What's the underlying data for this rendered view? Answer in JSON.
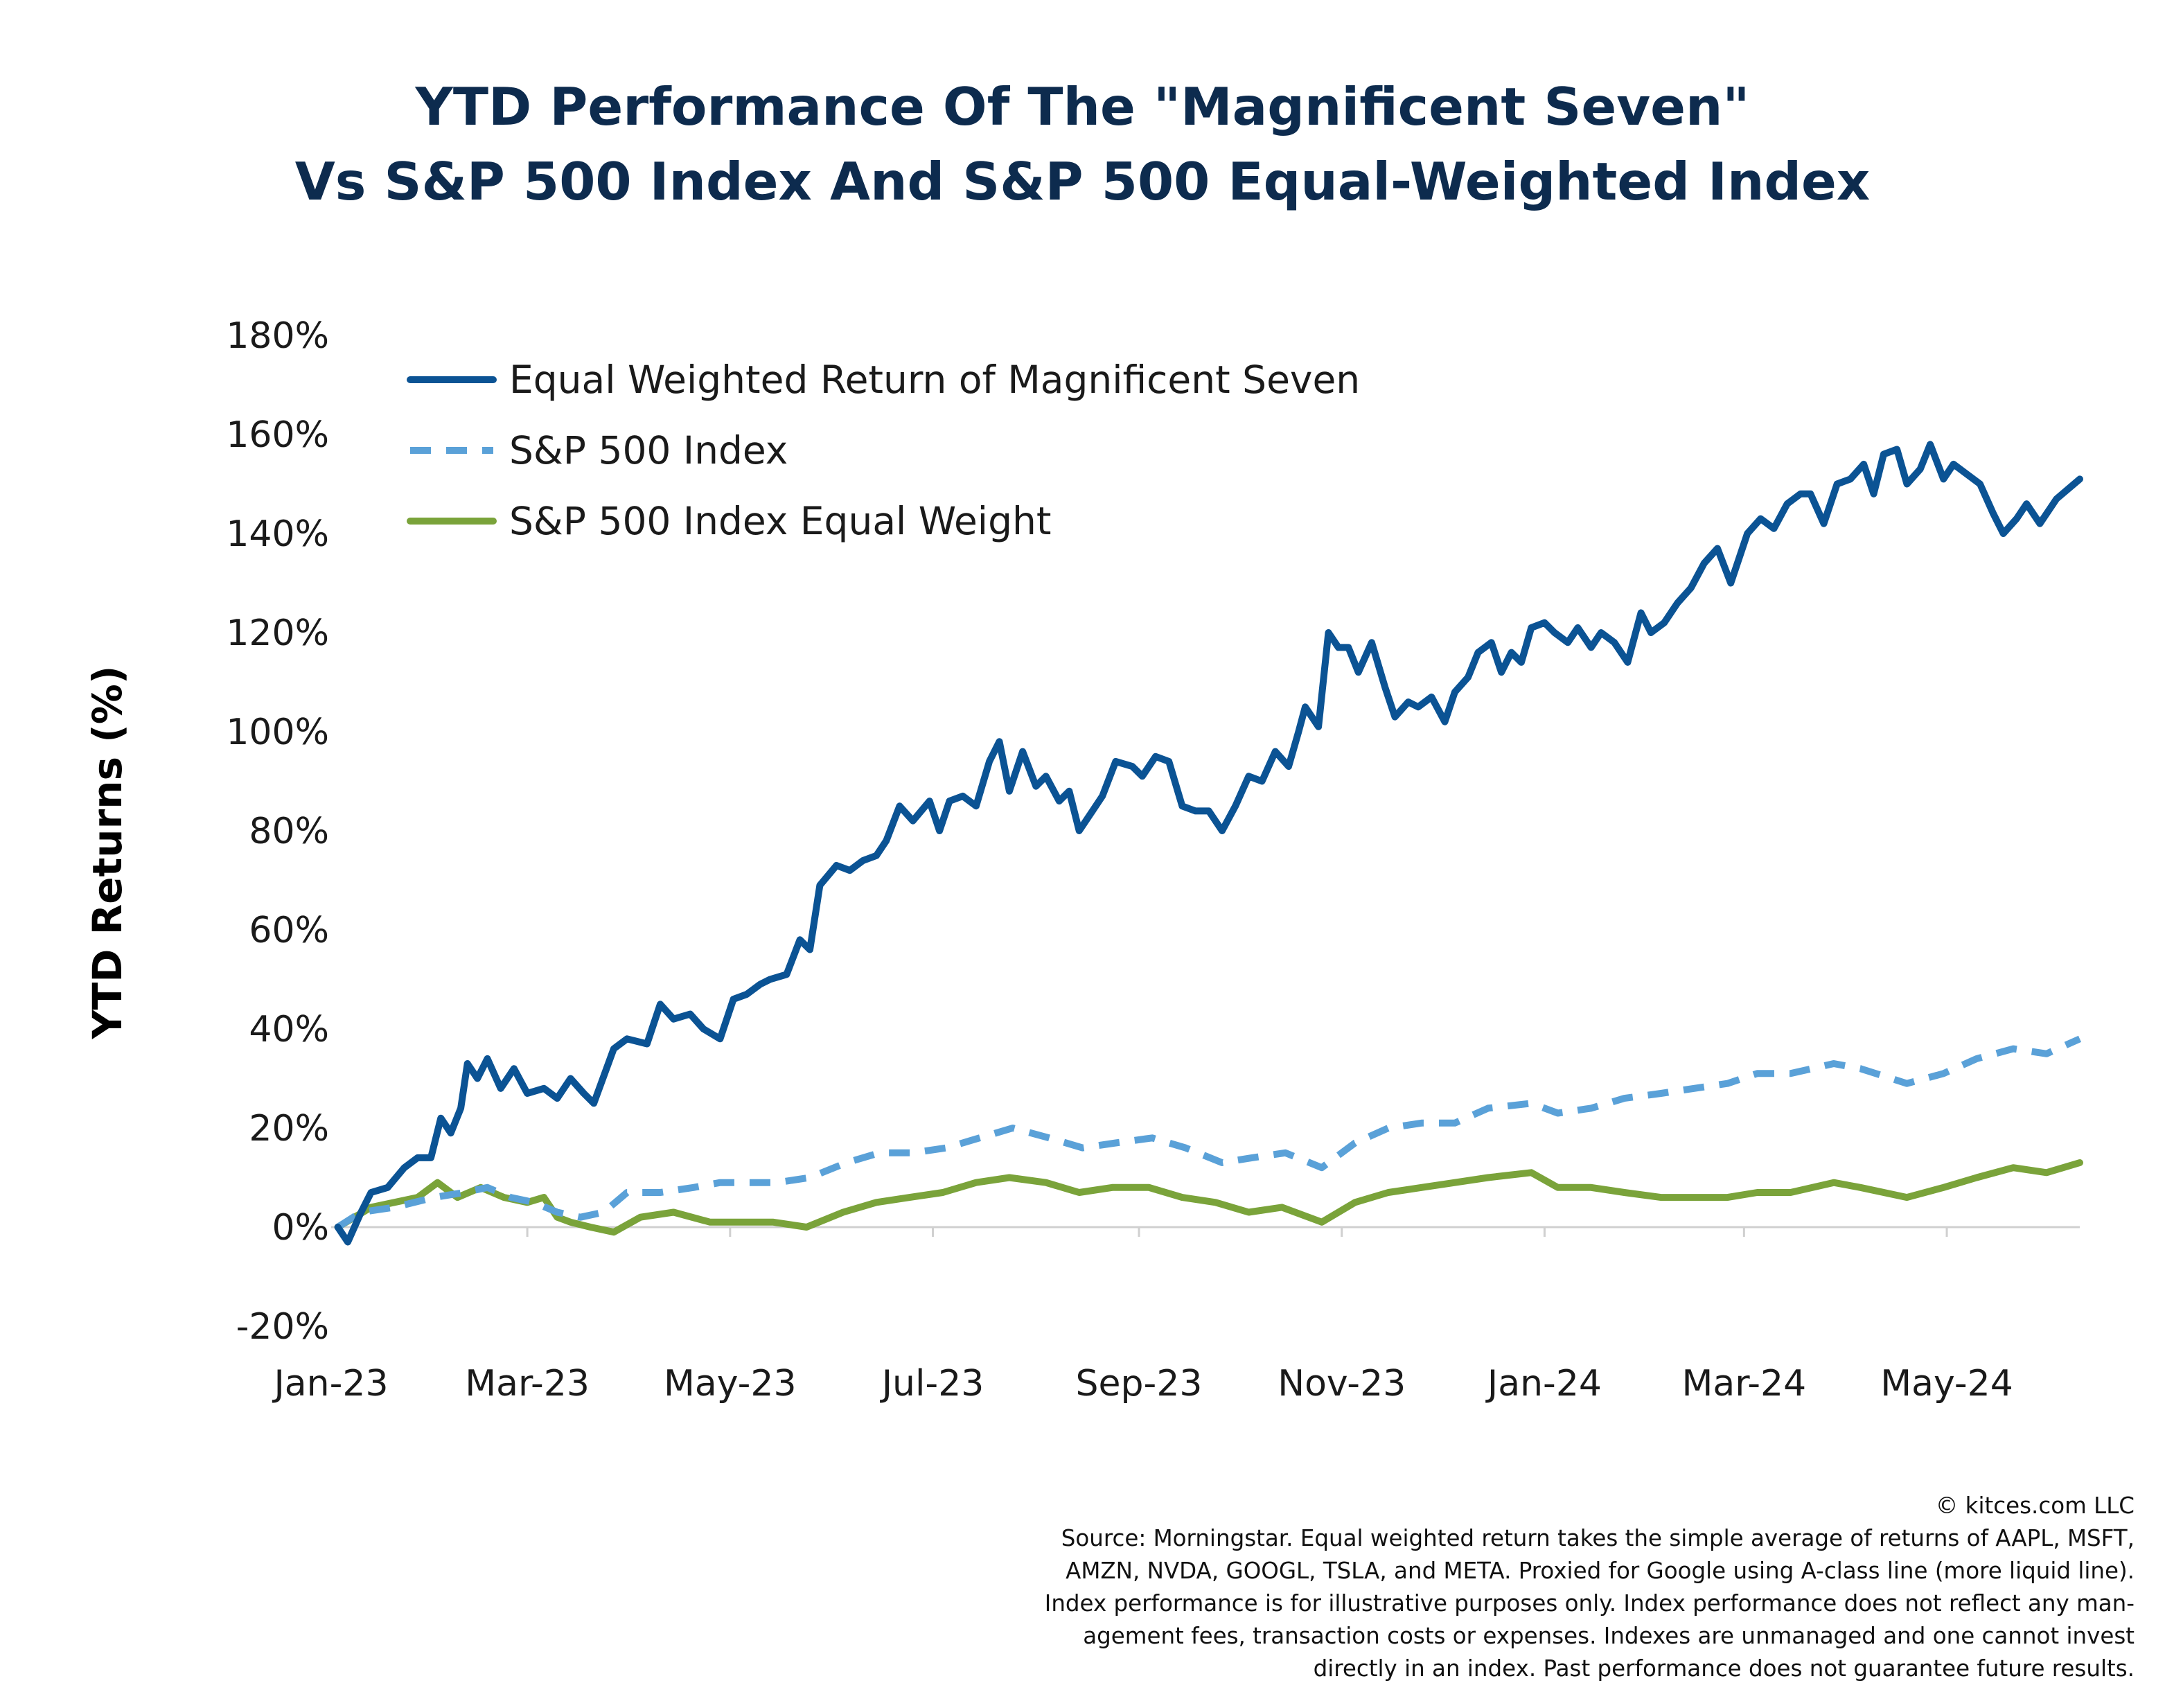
{
  "title_lines": [
    "YTD Performance Of The \"Magnificent Seven\"",
    "Vs S&P 500 Index And S&P 500 Equal-Weighted Index"
  ],
  "footer": {
    "copyright": "© kitces.com LLC",
    "source_lines": [
      "Source: Morningstar. Equal weighted return takes the simple average of returns of AAPL, MSFT,",
      "AMZN, NVDA, GOOGL, TSLA, and META. Proxied for Google using A-class line (more liquid line).",
      "Index performance is for illustrative purposes only.  Index performance does not reflect any man-",
      "agement fees, transaction costs or expenses. Indexes are unmanaged and one cannot invest",
      "directly in an index. Past performance does not guarantee future results."
    ]
  },
  "chart_data": {
    "type": "line",
    "title": "YTD Performance Of The \"Magnificent Seven\" Vs S&P 500 Index And S&P 500 Equal-Weighted Index",
    "xlabel": "",
    "ylabel": "YTD Returns (%)",
    "ylim": [
      -20,
      180
    ],
    "y_ticks": [
      -20,
      0,
      20,
      40,
      60,
      80,
      100,
      120,
      140,
      160,
      180
    ],
    "y_tick_labels": [
      "-20%",
      "0%",
      "20%",
      "40%",
      "60%",
      "80%",
      "100%",
      "120%",
      "140%",
      "160%",
      "180%"
    ],
    "x_range": [
      "2023-01-01",
      "2024-06-10"
    ],
    "x_ticks": [
      "2023-01-01",
      "2023-03-01",
      "2023-05-01",
      "2023-07-01",
      "2023-09-01",
      "2023-11-01",
      "2024-01-01",
      "2024-03-01",
      "2024-05-01"
    ],
    "x_tick_labels": [
      "Jan-23",
      "Mar-23",
      "May-23",
      "Jul-23",
      "Sep-23",
      "Nov-23",
      "Jan-24",
      "Mar-24",
      "May-24"
    ],
    "grid": false,
    "legend_position": "top-left",
    "series": [
      {
        "name": "Equal Weighted Return of Magnificent Seven",
        "color": "#0b5394",
        "style": "solid",
        "points": [
          [
            "2023-01-03",
            0
          ],
          [
            "2023-01-06",
            -3
          ],
          [
            "2023-01-10",
            3
          ],
          [
            "2023-01-13",
            7
          ],
          [
            "2023-01-18",
            8
          ],
          [
            "2023-01-23",
            12
          ],
          [
            "2023-01-27",
            14
          ],
          [
            "2023-01-31",
            14
          ],
          [
            "2023-02-03",
            22
          ],
          [
            "2023-02-06",
            19
          ],
          [
            "2023-02-09",
            24
          ],
          [
            "2023-02-11",
            33
          ],
          [
            "2023-02-14",
            30
          ],
          [
            "2023-02-17",
            34
          ],
          [
            "2023-02-21",
            28
          ],
          [
            "2023-02-25",
            32
          ],
          [
            "2023-03-01",
            27
          ],
          [
            "2023-03-06",
            28
          ],
          [
            "2023-03-10",
            26
          ],
          [
            "2023-03-14",
            30
          ],
          [
            "2023-03-18",
            27
          ],
          [
            "2023-03-21",
            25
          ],
          [
            "2023-03-27",
            36
          ],
          [
            "2023-03-31",
            38
          ],
          [
            "2023-04-06",
            37
          ],
          [
            "2023-04-10",
            45
          ],
          [
            "2023-04-14",
            42
          ],
          [
            "2023-04-19",
            43
          ],
          [
            "2023-04-23",
            40
          ],
          [
            "2023-04-28",
            38
          ],
          [
            "2023-05-02",
            46
          ],
          [
            "2023-05-06",
            47
          ],
          [
            "2023-05-10",
            49
          ],
          [
            "2023-05-13",
            50
          ],
          [
            "2023-05-18",
            51
          ],
          [
            "2023-05-22",
            58
          ],
          [
            "2023-05-25",
            56
          ],
          [
            "2023-05-28",
            69
          ],
          [
            "2023-06-02",
            73
          ],
          [
            "2023-06-06",
            72
          ],
          [
            "2023-06-10",
            74
          ],
          [
            "2023-06-14",
            75
          ],
          [
            "2023-06-17",
            78
          ],
          [
            "2023-06-21",
            85
          ],
          [
            "2023-06-25",
            82
          ],
          [
            "2023-06-30",
            86
          ],
          [
            "2023-07-03",
            80
          ],
          [
            "2023-07-06",
            86
          ],
          [
            "2023-07-10",
            87
          ],
          [
            "2023-07-14",
            85
          ],
          [
            "2023-07-18",
            94
          ],
          [
            "2023-07-21",
            98
          ],
          [
            "2023-07-24",
            88
          ],
          [
            "2023-07-28",
            96
          ],
          [
            "2023-08-01",
            89
          ],
          [
            "2023-08-04",
            91
          ],
          [
            "2023-08-08",
            86
          ],
          [
            "2023-08-11",
            88
          ],
          [
            "2023-08-14",
            80
          ],
          [
            "2023-08-18",
            84
          ],
          [
            "2023-08-21",
            87
          ],
          [
            "2023-08-25",
            94
          ],
          [
            "2023-08-30",
            93
          ],
          [
            "2023-09-02",
            91
          ],
          [
            "2023-09-06",
            95
          ],
          [
            "2023-09-10",
            94
          ],
          [
            "2023-09-14",
            85
          ],
          [
            "2023-09-18",
            84
          ],
          [
            "2023-09-22",
            84
          ],
          [
            "2023-09-26",
            80
          ],
          [
            "2023-09-30",
            85
          ],
          [
            "2023-10-04",
            91
          ],
          [
            "2023-10-08",
            90
          ],
          [
            "2023-10-12",
            96
          ],
          [
            "2023-10-16",
            93
          ],
          [
            "2023-10-19",
            100
          ],
          [
            "2023-10-21",
            105
          ],
          [
            "2023-10-25",
            101
          ],
          [
            "2023-10-28",
            120
          ],
          [
            "2023-10-31",
            117
          ],
          [
            "2023-11-03",
            117
          ],
          [
            "2023-11-06",
            112
          ],
          [
            "2023-11-10",
            118
          ],
          [
            "2023-11-14",
            109
          ],
          [
            "2023-11-17",
            103
          ],
          [
            "2023-11-21",
            106
          ],
          [
            "2023-11-24",
            105
          ],
          [
            "2023-11-28",
            107
          ],
          [
            "2023-12-02",
            102
          ],
          [
            "2023-12-05",
            108
          ],
          [
            "2023-12-09",
            111
          ],
          [
            "2023-12-12",
            116
          ],
          [
            "2023-12-16",
            118
          ],
          [
            "2023-12-19",
            112
          ],
          [
            "2023-12-22",
            116
          ],
          [
            "2023-12-25",
            114
          ],
          [
            "2023-12-28",
            121
          ],
          [
            "2024-01-01",
            122
          ],
          [
            "2024-01-04",
            120
          ],
          [
            "2024-01-08",
            118
          ],
          [
            "2024-01-11",
            121
          ],
          [
            "2024-01-15",
            117
          ],
          [
            "2024-01-18",
            120
          ],
          [
            "2024-01-22",
            118
          ],
          [
            "2024-01-26",
            114
          ],
          [
            "2024-01-30",
            124
          ],
          [
            "2024-02-02",
            120
          ],
          [
            "2024-02-06",
            122
          ],
          [
            "2024-02-10",
            126
          ],
          [
            "2024-02-14",
            129
          ],
          [
            "2024-02-18",
            134
          ],
          [
            "2024-02-22",
            137
          ],
          [
            "2024-02-26",
            130
          ],
          [
            "2024-03-02",
            140
          ],
          [
            "2024-03-06",
            143
          ],
          [
            "2024-03-10",
            141
          ],
          [
            "2024-03-14",
            146
          ],
          [
            "2024-03-18",
            148
          ],
          [
            "2024-03-21",
            148
          ],
          [
            "2024-03-25",
            142
          ],
          [
            "2024-03-29",
            150
          ],
          [
            "2024-04-02",
            151
          ],
          [
            "2024-04-06",
            154
          ],
          [
            "2024-04-09",
            148
          ],
          [
            "2024-04-12",
            156
          ],
          [
            "2024-04-16",
            157
          ],
          [
            "2024-04-19",
            150
          ],
          [
            "2024-04-23",
            153
          ],
          [
            "2024-04-26",
            158
          ],
          [
            "2024-04-30",
            151
          ],
          [
            "2024-05-03",
            154
          ],
          [
            "2024-05-07",
            152
          ],
          [
            "2024-05-11",
            150
          ],
          [
            "2024-05-15",
            144
          ],
          [
            "2024-05-18",
            140
          ],
          [
            "2024-05-22",
            143
          ],
          [
            "2024-05-25",
            146
          ],
          [
            "2024-05-29",
            142
          ],
          [
            "2024-06-03",
            147
          ],
          [
            "2024-06-10",
            151
          ]
        ]
      },
      {
        "name": "S&P 500 Index",
        "color": "#5aa1d8",
        "style": "dashed",
        "points": [
          [
            "2023-01-03",
            0
          ],
          [
            "2023-01-10",
            3
          ],
          [
            "2023-01-20",
            4
          ],
          [
            "2023-02-01",
            6
          ],
          [
            "2023-02-10",
            7
          ],
          [
            "2023-02-17",
            8
          ],
          [
            "2023-02-24",
            6
          ],
          [
            "2023-03-03",
            5
          ],
          [
            "2023-03-10",
            3
          ],
          [
            "2023-03-17",
            2
          ],
          [
            "2023-03-24",
            3
          ],
          [
            "2023-03-31",
            7
          ],
          [
            "2023-04-10",
            7
          ],
          [
            "2023-04-20",
            8
          ],
          [
            "2023-04-28",
            9
          ],
          [
            "2023-05-05",
            9
          ],
          [
            "2023-05-15",
            9
          ],
          [
            "2023-05-25",
            10
          ],
          [
            "2023-06-05",
            13
          ],
          [
            "2023-06-15",
            15
          ],
          [
            "2023-06-25",
            15
          ],
          [
            "2023-07-05",
            16
          ],
          [
            "2023-07-15",
            18
          ],
          [
            "2023-07-25",
            20
          ],
          [
            "2023-08-05",
            18
          ],
          [
            "2023-08-15",
            16
          ],
          [
            "2023-08-25",
            17
          ],
          [
            "2023-09-05",
            18
          ],
          [
            "2023-09-15",
            16
          ],
          [
            "2023-09-26",
            13
          ],
          [
            "2023-10-05",
            14
          ],
          [
            "2023-10-15",
            15
          ],
          [
            "2023-10-26",
            12
          ],
          [
            "2023-11-05",
            17
          ],
          [
            "2023-11-15",
            20
          ],
          [
            "2023-11-25",
            21
          ],
          [
            "2023-12-05",
            21
          ],
          [
            "2023-12-15",
            24
          ],
          [
            "2023-12-28",
            25
          ],
          [
            "2024-01-05",
            23
          ],
          [
            "2024-01-15",
            24
          ],
          [
            "2024-01-25",
            26
          ],
          [
            "2024-02-05",
            27
          ],
          [
            "2024-02-15",
            28
          ],
          [
            "2024-02-25",
            29
          ],
          [
            "2024-03-05",
            31
          ],
          [
            "2024-03-15",
            31
          ],
          [
            "2024-03-28",
            33
          ],
          [
            "2024-04-05",
            32
          ],
          [
            "2024-04-19",
            29
          ],
          [
            "2024-04-30",
            31
          ],
          [
            "2024-05-10",
            34
          ],
          [
            "2024-05-21",
            36
          ],
          [
            "2024-05-31",
            35
          ],
          [
            "2024-06-10",
            38
          ]
        ]
      },
      {
        "name": "S&P 500 Index Equal Weight",
        "color": "#7aa33a",
        "style": "solid",
        "points": [
          [
            "2023-01-03",
            0
          ],
          [
            "2023-01-08",
            2
          ],
          [
            "2023-01-13",
            4
          ],
          [
            "2023-01-20",
            5
          ],
          [
            "2023-01-27",
            6
          ],
          [
            "2023-02-02",
            9
          ],
          [
            "2023-02-08",
            6
          ],
          [
            "2023-02-15",
            8
          ],
          [
            "2023-02-22",
            6
          ],
          [
            "2023-03-01",
            5
          ],
          [
            "2023-03-06",
            6
          ],
          [
            "2023-03-10",
            2
          ],
          [
            "2023-03-14",
            1
          ],
          [
            "2023-03-20",
            0
          ],
          [
            "2023-03-27",
            -1
          ],
          [
            "2023-04-04",
            2
          ],
          [
            "2023-04-14",
            3
          ],
          [
            "2023-04-25",
            1
          ],
          [
            "2023-05-04",
            1
          ],
          [
            "2023-05-14",
            1
          ],
          [
            "2023-05-24",
            0
          ],
          [
            "2023-06-04",
            3
          ],
          [
            "2023-06-14",
            5
          ],
          [
            "2023-06-24",
            6
          ],
          [
            "2023-07-04",
            7
          ],
          [
            "2023-07-14",
            9
          ],
          [
            "2023-07-24",
            10
          ],
          [
            "2023-08-04",
            9
          ],
          [
            "2023-08-14",
            7
          ],
          [
            "2023-08-24",
            8
          ],
          [
            "2023-09-04",
            8
          ],
          [
            "2023-09-14",
            6
          ],
          [
            "2023-09-24",
            5
          ],
          [
            "2023-10-04",
            3
          ],
          [
            "2023-10-14",
            4
          ],
          [
            "2023-10-26",
            1
          ],
          [
            "2023-11-05",
            5
          ],
          [
            "2023-11-15",
            7
          ],
          [
            "2023-11-25",
            8
          ],
          [
            "2023-12-05",
            9
          ],
          [
            "2023-12-15",
            10
          ],
          [
            "2023-12-28",
            11
          ],
          [
            "2024-01-05",
            8
          ],
          [
            "2024-01-15",
            8
          ],
          [
            "2024-01-25",
            7
          ],
          [
            "2024-02-05",
            6
          ],
          [
            "2024-02-15",
            6
          ],
          [
            "2024-02-25",
            6
          ],
          [
            "2024-03-05",
            7
          ],
          [
            "2024-03-15",
            7
          ],
          [
            "2024-03-28",
            9
          ],
          [
            "2024-04-05",
            8
          ],
          [
            "2024-04-19",
            6
          ],
          [
            "2024-04-30",
            8
          ],
          [
            "2024-05-10",
            10
          ],
          [
            "2024-05-21",
            12
          ],
          [
            "2024-05-31",
            11
          ],
          [
            "2024-06-10",
            13
          ]
        ]
      }
    ]
  }
}
